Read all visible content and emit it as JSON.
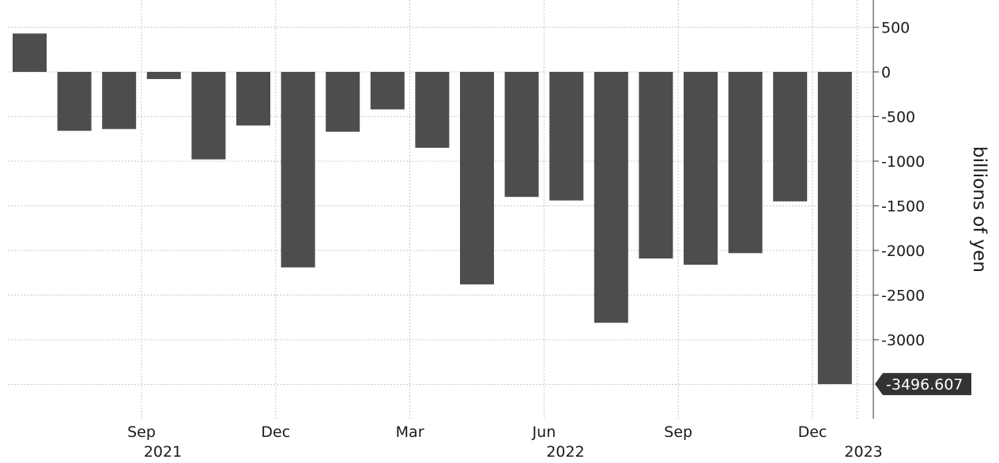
{
  "chart_data": {
    "type": "bar",
    "categories": [
      "2021-07",
      "2021-08",
      "2021-09",
      "2021-10",
      "2021-11",
      "2021-12",
      "2022-01",
      "2022-02",
      "2022-03",
      "2022-04",
      "2022-05",
      "2022-06",
      "2022-07",
      "2022-08",
      "2022-09",
      "2022-10",
      "2022-11",
      "2022-12",
      "2023-01"
    ],
    "values": [
      430,
      -660,
      -640,
      -80,
      -980,
      -600,
      -2190,
      -670,
      -420,
      -850,
      -2380,
      -1400,
      -1440,
      -2810,
      -2090,
      -2160,
      -2030,
      -1450,
      -3496.607
    ],
    "title": "",
    "xlabel": "",
    "ylabel": "billions of yen",
    "ylim": [
      -3800,
      800
    ],
    "y_ticks": [
      500,
      0,
      -500,
      -1000,
      -1500,
      -2000,
      -2500,
      -3000
    ],
    "y_tick_labels": [
      "500",
      "0",
      "-500",
      "-1000",
      "-1500",
      "-2000",
      "-2500",
      "-3000"
    ],
    "x_ticks": [
      {
        "month": "Sep",
        "year": "2021",
        "after_index": 2
      },
      {
        "month": "Dec",
        "year": "",
        "after_index": 5
      },
      {
        "month": "Mar",
        "year": "",
        "after_index": 8
      },
      {
        "month": "Jun",
        "year": "2022",
        "after_index": 11
      },
      {
        "month": "Sep",
        "year": "",
        "after_index": 14
      },
      {
        "month": "Dec",
        "year": "",
        "after_index": 17
      },
      {
        "month": "",
        "year": "2023",
        "after_index": 18
      }
    ],
    "last_value_label": "-3496.607",
    "grid": true,
    "bar_color": "#4d4d4d",
    "last_label_color": "#333333",
    "grid_color": "#c8c8c8"
  }
}
